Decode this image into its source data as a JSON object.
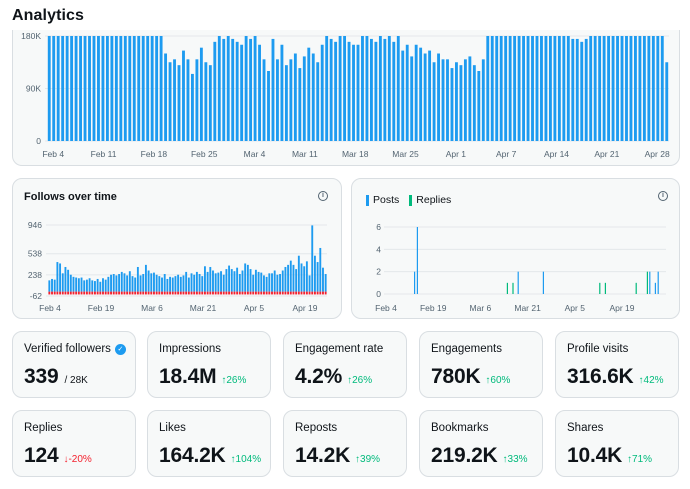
{
  "page": {
    "title": "Analytics"
  },
  "colors": {
    "posts": "#1d9bf0",
    "replies": "#00ba7c",
    "unfollows": "#f4212e",
    "grid": "#eff3f4"
  },
  "chart_data": [
    {
      "id": "impressions",
      "type": "bar",
      "title": "",
      "ylim": [
        0,
        180000
      ],
      "yticks": [
        "0",
        "90K",
        "180K"
      ],
      "ytick_values": [
        0,
        90000,
        180000
      ],
      "xtick_labels": [
        "Feb 4",
        "Feb 11",
        "Feb 18",
        "Feb 25",
        "Mar 4",
        "Mar 11",
        "Mar 18",
        "Mar 25",
        "Apr 1",
        "Apr 7",
        "Apr 14",
        "Apr 21",
        "Apr 28"
      ],
      "values": [
        180000,
        180000,
        180000,
        180000,
        180000,
        180000,
        180000,
        180000,
        180000,
        180000,
        180000,
        180000,
        180000,
        180000,
        180000,
        180000,
        180000,
        180000,
        180000,
        180000,
        180000,
        180000,
        180000,
        180000,
        180000,
        180000,
        150000,
        135000,
        140000,
        130000,
        155000,
        140000,
        115000,
        140000,
        160000,
        135000,
        130000,
        170000,
        180000,
        175000,
        180000,
        175000,
        170000,
        165000,
        180000,
        175000,
        180000,
        165000,
        140000,
        120000,
        175000,
        140000,
        165000,
        130000,
        140000,
        150000,
        125000,
        145000,
        160000,
        150000,
        135000,
        165000,
        180000,
        175000,
        170000,
        180000,
        180000,
        170000,
        165000,
        165000,
        180000,
        180000,
        175000,
        170000,
        180000,
        175000,
        180000,
        170000,
        180000,
        155000,
        165000,
        145000,
        165000,
        160000,
        150000,
        155000,
        135000,
        150000,
        140000,
        140000,
        125000,
        135000,
        130000,
        140000,
        145000,
        130000,
        120000,
        140000,
        180000,
        180000,
        180000,
        180000,
        180000,
        180000,
        180000,
        180000,
        180000,
        180000,
        180000,
        180000,
        180000,
        180000,
        180000,
        180000,
        180000,
        180000,
        180000,
        175000,
        175000,
        170000,
        175000,
        180000,
        180000,
        180000,
        180000,
        180000,
        180000,
        180000,
        180000,
        180000,
        180000,
        180000,
        180000,
        180000,
        180000,
        180000,
        180000,
        180000,
        135000
      ]
    },
    {
      "id": "follows-over-time",
      "type": "bar",
      "title": "Follows over time",
      "ylim": [
        -62,
        946
      ],
      "yticks": [
        "-62",
        "238",
        "538",
        "946"
      ],
      "ytick_values": [
        -62,
        238,
        538,
        946
      ],
      "xtick_labels": [
        "Feb 4",
        "Feb 19",
        "Mar 6",
        "Mar 21",
        "Apr 5",
        "Apr 19"
      ],
      "follows": [
        160,
        180,
        170,
        420,
        400,
        260,
        350,
        310,
        240,
        210,
        200,
        190,
        200,
        160,
        170,
        190,
        160,
        150,
        180,
        140,
        190,
        170,
        210,
        240,
        250,
        230,
        250,
        280,
        260,
        230,
        290,
        220,
        200,
        350,
        230,
        250,
        380,
        300,
        260,
        270,
        240,
        220,
        200,
        250,
        180,
        210,
        200,
        220,
        240,
        210,
        230,
        280,
        200,
        260,
        240,
        280,
        250,
        220,
        360,
        280,
        350,
        300,
        260,
        270,
        290,
        240,
        320,
        370,
        320,
        290,
        340,
        250,
        300,
        400,
        380,
        320,
        240,
        310,
        280,
        270,
        230,
        210,
        260,
        260,
        300,
        240,
        250,
        300,
        350,
        380,
        440,
        380,
        320,
        510,
        400,
        360,
        430,
        230,
        940,
        510,
        420,
        620,
        340,
        250
      ],
      "unfollows": [
        -40,
        -40,
        -40,
        -40,
        -40,
        -40,
        -40,
        -40,
        -40,
        -40,
        -40,
        -40,
        -40,
        -40,
        -40,
        -40,
        -40,
        -40,
        -40,
        -40,
        -40,
        -40,
        -40,
        -40,
        -40,
        -40,
        -40,
        -40,
        -40,
        -40,
        -40,
        -40,
        -40,
        -40,
        -40,
        -40,
        -40,
        -40,
        -40,
        -40,
        -40,
        -40,
        -40,
        -40,
        -40,
        -40,
        -40,
        -40,
        -40,
        -40,
        -40,
        -40,
        -40,
        -40,
        -40,
        -40,
        -40,
        -40,
        -40,
        -40,
        -40,
        -40,
        -40,
        -40,
        -40,
        -40,
        -40,
        -40,
        -40,
        -40,
        -40,
        -40,
        -40,
        -40,
        -40,
        -40,
        -40,
        -40,
        -40,
        -40,
        -40,
        -40,
        -40,
        -40,
        -40,
        -40,
        -40,
        -40,
        -40,
        -40,
        -40,
        -40,
        -40,
        -40,
        -40,
        -40,
        -40,
        -40,
        -40,
        -40,
        -40,
        -40,
        -40,
        -40
      ]
    },
    {
      "id": "posts-replies",
      "type": "bar",
      "title": "",
      "legend": [
        "Posts",
        "Replies"
      ],
      "ylim": [
        0,
        6
      ],
      "yticks": [
        "0",
        "2",
        "4",
        "6"
      ],
      "ytick_values": [
        0,
        2,
        4,
        6
      ],
      "xtick_labels": [
        "Feb 4",
        "Feb 19",
        "Mar 6",
        "Mar 21",
        "Apr 5",
        "Apr 19"
      ],
      "days": 100,
      "posts": [
        [
          10,
          2
        ],
        [
          11,
          6
        ],
        [
          47,
          2
        ],
        [
          56,
          2
        ],
        [
          94,
          2
        ],
        [
          96,
          1
        ],
        [
          97,
          2
        ]
      ],
      "replies": [
        [
          43,
          1
        ],
        [
          45,
          1
        ],
        [
          76,
          1
        ],
        [
          78,
          1
        ],
        [
          89,
          1
        ],
        [
          93,
          2
        ]
      ]
    }
  ],
  "metrics": [
    {
      "label": "Verified followers",
      "value": "339",
      "sub": "/ 28K",
      "verified": true
    },
    {
      "label": "Impressions",
      "value": "18.4M",
      "change": "↑26%",
      "dir": "up"
    },
    {
      "label": "Engagement rate",
      "value": "4.2%",
      "change": "↑26%",
      "dir": "up"
    },
    {
      "label": "Engagements",
      "value": "780K",
      "change": "↑60%",
      "dir": "up"
    },
    {
      "label": "Profile visits",
      "value": "316.6K",
      "change": "↑42%",
      "dir": "up"
    },
    {
      "label": "Replies",
      "value": "124",
      "change": "↓-20%",
      "dir": "down"
    },
    {
      "label": "Likes",
      "value": "164.2K",
      "change": "↑104%",
      "dir": "up"
    },
    {
      "label": "Reposts",
      "value": "14.2K",
      "change": "↑39%",
      "dir": "up"
    },
    {
      "label": "Bookmarks",
      "value": "219.2K",
      "change": "↑33%",
      "dir": "up"
    },
    {
      "label": "Shares",
      "value": "10.4K",
      "change": "↑71%",
      "dir": "up"
    }
  ]
}
